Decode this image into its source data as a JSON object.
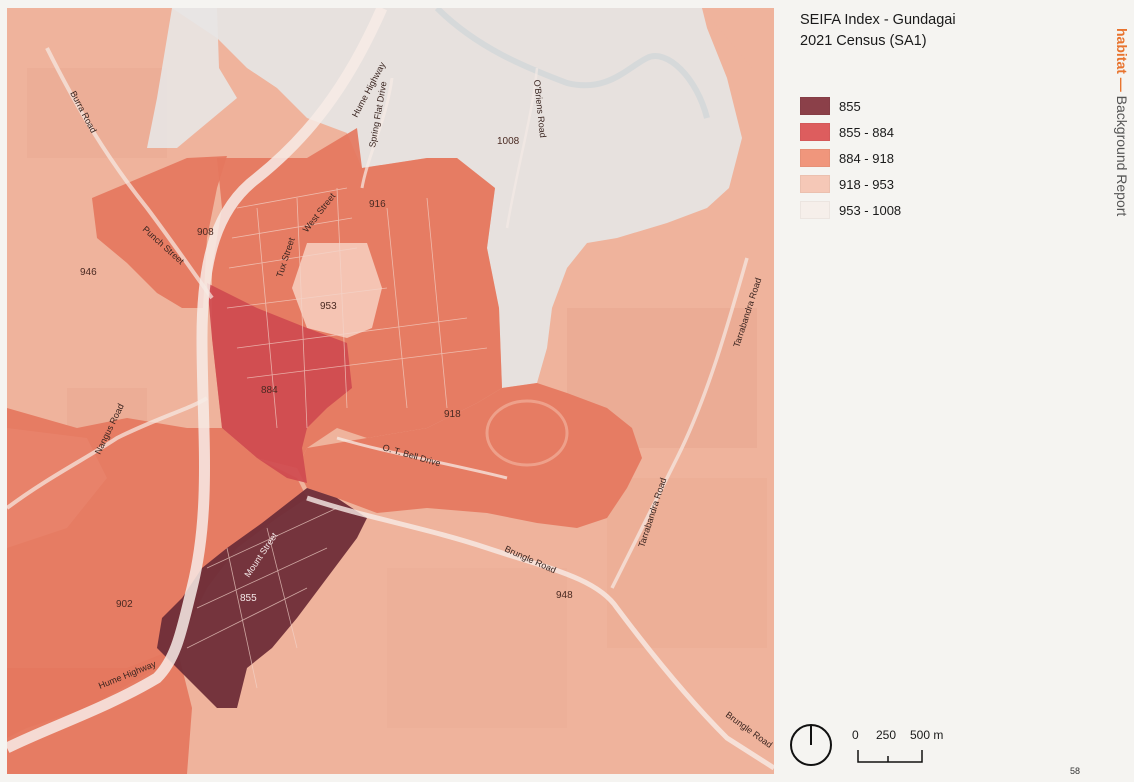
{
  "title": {
    "line1": "SEIFA Index - Gundagai",
    "line2": "2021 Census (SA1)"
  },
  "legend": [
    {
      "label": "855",
      "color": "#8b4049"
    },
    {
      "label": "855 - 884",
      "color": "#dd5d5e"
    },
    {
      "label": "884 - 918",
      "color": "#f0967c"
    },
    {
      "label": "918 - 953",
      "color": "#f5c8b7"
    },
    {
      "label": "953 - 1008",
      "color": "#f6efea"
    }
  ],
  "sidebar": {
    "brand": "habitat",
    "dash": " — ",
    "report": "Background Report"
  },
  "areas": [
    {
      "value": "855",
      "class": "855"
    },
    {
      "value": "884",
      "class": "855 - 884"
    },
    {
      "value": "902",
      "class": "884 - 918"
    },
    {
      "value": "908",
      "class": "884 - 918"
    },
    {
      "value": "916",
      "class": "884 - 918"
    },
    {
      "value": "918",
      "class": "884 - 918"
    },
    {
      "value": "946",
      "class": "918 - 953"
    },
    {
      "value": "948",
      "class": "918 - 953"
    },
    {
      "value": "953",
      "class": "918 - 953"
    },
    {
      "value": "1008",
      "class": "953 - 1008"
    }
  ],
  "roads": {
    "burra": "Burra Road",
    "hume_north": "Hume Highway",
    "spring_flat": "Spring Flat Drive",
    "obriens": "O'Briens Road",
    "punch": "Punch Street",
    "tux": "Tux Street",
    "west": "West Street",
    "nangus": "Nangus Road",
    "ot_bell": "O. T. Bell Drive",
    "mount": "Mount Street",
    "hume_south": "Hume Highway",
    "bringle_1": "Brungle Road",
    "bringle_2": "Brungle Road",
    "tarrabandra_1": "Tarrabandra Road",
    "tarrabandra_2": "Tarrabandra Road"
  },
  "scale": {
    "zero": "0",
    "mid": "250",
    "max": "500 m"
  },
  "page_number": "58",
  "icons": {
    "north": "north-arrow-icon"
  }
}
